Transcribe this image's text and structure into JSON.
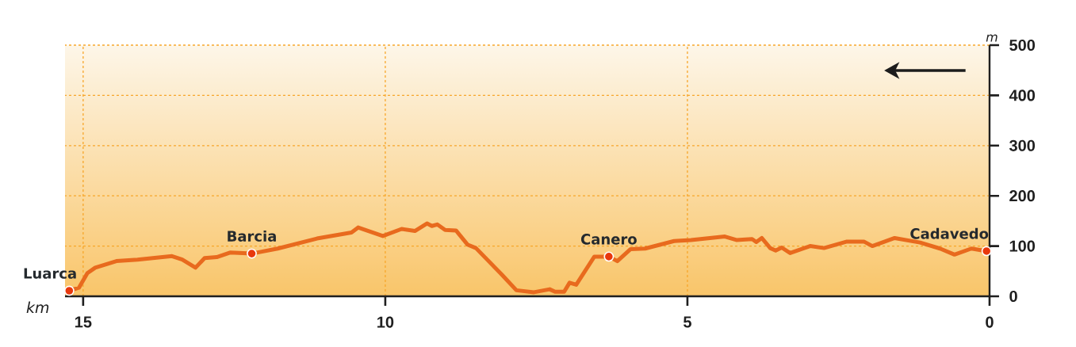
{
  "chart_data": {
    "type": "line",
    "xlabel": "km",
    "ylabel": "m",
    "series": [
      {
        "color": "#e86a1e",
        "line_style": "solid",
        "x": [
          15.23,
          15.07,
          14.93,
          14.8,
          14.45,
          14.1,
          13.53,
          13.36,
          13.14,
          12.99,
          12.79,
          12.57,
          12.21,
          11.78,
          11.13,
          10.56,
          10.45,
          10.04,
          9.73,
          9.51,
          9.31,
          9.23,
          9.14,
          9.01,
          8.83,
          8.64,
          8.5,
          8.07,
          7.83,
          7.54,
          7.28,
          7.19,
          7.04,
          6.95,
          6.84,
          6.54,
          6.3,
          6.16,
          5.94,
          5.7,
          5.22,
          4.94,
          4.38,
          4.19,
          3.93,
          3.86,
          3.77,
          3.63,
          3.54,
          3.44,
          3.3,
          2.97,
          2.74,
          2.36,
          2.08,
          1.94,
          1.57,
          1.15,
          0.82,
          0.58,
          0.3,
          0.05
        ],
        "values": [
          11,
          17,
          46,
          57,
          70,
          73,
          80,
          73,
          57,
          76,
          78,
          87,
          85,
          95,
          115,
          127,
          137,
          120,
          134,
          130,
          145,
          140,
          143,
          132,
          131,
          103,
          96,
          43,
          12,
          8,
          14,
          9,
          9,
          27,
          23,
          79,
          79,
          70,
          94,
          95,
          110,
          112,
          119,
          112,
          114,
          108,
          116,
          96,
          91,
          97,
          86,
          100,
          96,
          109,
          109,
          100,
          116,
          107,
          95,
          83,
          95,
          90
        ]
      },
      {
        "type": "scatter",
        "color": "#e8380d",
        "marker": "circle",
        "x": [
          15.23,
          12.21,
          6.3,
          0.05
        ],
        "values": [
          11,
          85,
          79,
          90
        ]
      }
    ],
    "annotations": [
      {
        "text": "Luarca",
        "x": 15.23,
        "y": 11
      },
      {
        "text": "Barcia",
        "x": 12.21,
        "y": 85
      },
      {
        "text": "Canero",
        "x": 6.3,
        "y": 79
      },
      {
        "text": "Cadavedo",
        "x": 0.05,
        "y": 90
      }
    ],
    "xlim": [
      15.3,
      0
    ],
    "xticks": [
      15,
      10,
      5,
      0
    ],
    "ylim": [
      0,
      500
    ],
    "yticks": [
      0,
      100,
      200,
      300,
      400,
      500
    ],
    "grid": true
  }
}
